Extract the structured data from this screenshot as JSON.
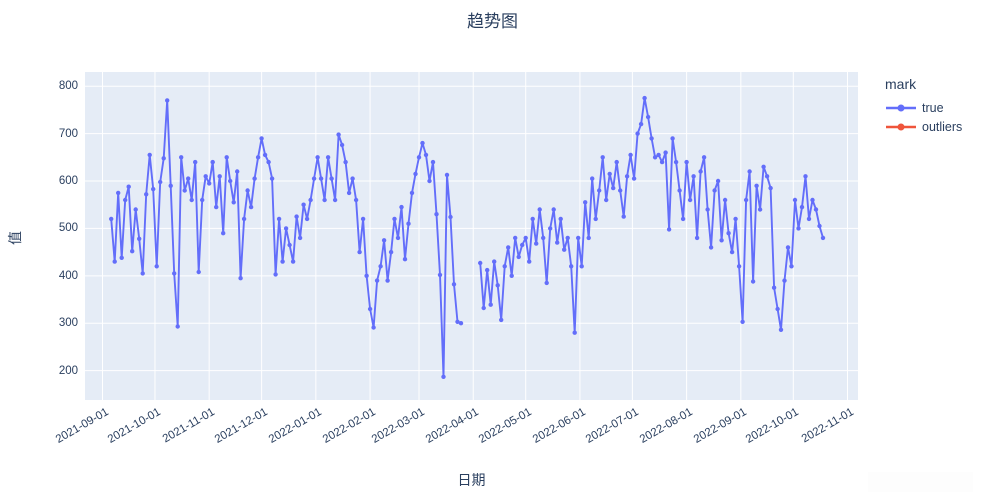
{
  "title": "趋势图",
  "axes": {
    "x_label": "日期",
    "y_label": "值",
    "y_ticks": [
      200,
      300,
      400,
      500,
      600,
      700,
      800
    ],
    "x_ticks": [
      "2021-09-01",
      "2021-10-01",
      "2021-11-01",
      "2021-12-01",
      "2022-01-01",
      "2022-02-01",
      "2022-03-01",
      "2022-04-01",
      "2022-05-01",
      "2022-06-01",
      "2022-07-01",
      "2022-08-01",
      "2022-09-01",
      "2022-10-01",
      "2022-11-01"
    ]
  },
  "legend": {
    "title": "mark",
    "entries": [
      {
        "label": "true",
        "color": "#636EFA"
      },
      {
        "label": "outliers",
        "color": "#EF553B"
      }
    ]
  },
  "colors": {
    "plot_background": "#e5ecf6",
    "grid": "#ffffff",
    "text": "#2a3f5f",
    "series_true": "#636EFA",
    "series_outliers": "#EF553B"
  },
  "chart_data": {
    "type": "line",
    "title": "趋势图",
    "xlabel": "日期",
    "ylabel": "值",
    "grid": true,
    "legend_position": "right",
    "x_domain": [
      "2021-08-22",
      "2022-11-07"
    ],
    "y_domain": [
      138,
      830
    ],
    "series": [
      {
        "name": "true",
        "color": "#636EFA",
        "points": [
          [
            "2021-09-06",
            520
          ],
          [
            "2021-09-08",
            430
          ],
          [
            "2021-09-10",
            575
          ],
          [
            "2021-09-12",
            438
          ],
          [
            "2021-09-14",
            560
          ],
          [
            "2021-09-16",
            588
          ],
          [
            "2021-09-18",
            452
          ],
          [
            "2021-09-20",
            540
          ],
          [
            "2021-09-22",
            478
          ],
          [
            "2021-09-24",
            405
          ],
          [
            "2021-09-26",
            572
          ],
          [
            "2021-09-28",
            655
          ],
          [
            "2021-09-30",
            583
          ],
          [
            "2021-10-02",
            420
          ],
          [
            "2021-10-04",
            598
          ],
          [
            "2021-10-06",
            648
          ],
          [
            "2021-10-08",
            770
          ],
          [
            "2021-10-10",
            590
          ],
          [
            "2021-10-12",
            405
          ],
          [
            "2021-10-14",
            293
          ],
          [
            "2021-10-16",
            650
          ],
          [
            "2021-10-18",
            580
          ],
          [
            "2021-10-20",
            605
          ],
          [
            "2021-10-22",
            560
          ],
          [
            "2021-10-24",
            640
          ],
          [
            "2021-10-26",
            408
          ],
          [
            "2021-10-28",
            560
          ],
          [
            "2021-10-30",
            610
          ],
          [
            "2021-11-01",
            595
          ],
          [
            "2021-11-03",
            640
          ],
          [
            "2021-11-05",
            545
          ],
          [
            "2021-11-07",
            610
          ],
          [
            "2021-11-09",
            490
          ],
          [
            "2021-11-11",
            650
          ],
          [
            "2021-11-13",
            600
          ],
          [
            "2021-11-15",
            555
          ],
          [
            "2021-11-17",
            620
          ],
          [
            "2021-11-19",
            395
          ],
          [
            "2021-11-21",
            520
          ],
          [
            "2021-11-23",
            580
          ],
          [
            "2021-11-25",
            545
          ],
          [
            "2021-11-27",
            605
          ],
          [
            "2021-11-29",
            650
          ],
          [
            "2021-12-01",
            690
          ],
          [
            "2021-12-03",
            655
          ],
          [
            "2021-12-05",
            640
          ],
          [
            "2021-12-07",
            605
          ],
          [
            "2021-12-09",
            403
          ],
          [
            "2021-12-11",
            520
          ],
          [
            "2021-12-13",
            430
          ],
          [
            "2021-12-15",
            500
          ],
          [
            "2021-12-17",
            465
          ],
          [
            "2021-12-19",
            430
          ],
          [
            "2021-12-21",
            525
          ],
          [
            "2021-12-23",
            480
          ],
          [
            "2021-12-25",
            550
          ],
          [
            "2021-12-27",
            520
          ],
          [
            "2021-12-29",
            560
          ],
          [
            "2021-12-31",
            605
          ],
          [
            "2022-01-02",
            650
          ],
          [
            "2022-01-04",
            605
          ],
          [
            "2022-01-06",
            560
          ],
          [
            "2022-01-08",
            650
          ],
          [
            "2022-01-10",
            605
          ],
          [
            "2022-01-12",
            560
          ],
          [
            "2022-01-14",
            698
          ],
          [
            "2022-01-16",
            676
          ],
          [
            "2022-01-18",
            640
          ],
          [
            "2022-01-20",
            575
          ],
          [
            "2022-01-22",
            605
          ],
          [
            "2022-01-24",
            560
          ],
          [
            "2022-01-26",
            450
          ],
          [
            "2022-01-28",
            520
          ],
          [
            "2022-01-30",
            400
          ],
          [
            "2022-02-01",
            330
          ],
          [
            "2022-02-03",
            291
          ],
          [
            "2022-02-05",
            390
          ],
          [
            "2022-02-07",
            420
          ],
          [
            "2022-02-09",
            475
          ],
          [
            "2022-02-11",
            390
          ],
          [
            "2022-02-13",
            450
          ],
          [
            "2022-02-15",
            520
          ],
          [
            "2022-02-17",
            480
          ],
          [
            "2022-02-19",
            545
          ],
          [
            "2022-02-21",
            435
          ],
          [
            "2022-02-23",
            510
          ],
          [
            "2022-02-25",
            575
          ],
          [
            "2022-02-27",
            615
          ],
          [
            "2022-03-01",
            650
          ],
          [
            "2022-03-03",
            680
          ],
          [
            "2022-03-05",
            655
          ],
          [
            "2022-03-07",
            600
          ],
          [
            "2022-03-09",
            640
          ],
          [
            "2022-03-11",
            530
          ],
          [
            "2022-03-13",
            402
          ],
          [
            "2022-03-15",
            187
          ],
          [
            "2022-03-17",
            613
          ],
          [
            "2022-03-19",
            524
          ],
          [
            "2022-03-21",
            382
          ],
          [
            "2022-03-23",
            303
          ],
          [
            "2022-03-25",
            300
          ],
          [
            "2022-04-05",
            427
          ],
          [
            "2022-04-07",
            332
          ],
          [
            "2022-04-09",
            412
          ],
          [
            "2022-04-11",
            339
          ],
          [
            "2022-04-13",
            430
          ],
          [
            "2022-04-15",
            380
          ],
          [
            "2022-04-17",
            307
          ],
          [
            "2022-04-19",
            420
          ],
          [
            "2022-04-21",
            460
          ],
          [
            "2022-04-23",
            400
          ],
          [
            "2022-04-25",
            480
          ],
          [
            "2022-04-27",
            440
          ],
          [
            "2022-04-29",
            465
          ],
          [
            "2022-05-01",
            480
          ],
          [
            "2022-05-03",
            430
          ],
          [
            "2022-05-05",
            520
          ],
          [
            "2022-05-07",
            468
          ],
          [
            "2022-05-09",
            540
          ],
          [
            "2022-05-11",
            480
          ],
          [
            "2022-05-13",
            385
          ],
          [
            "2022-05-15",
            500
          ],
          [
            "2022-05-17",
            540
          ],
          [
            "2022-05-19",
            470
          ],
          [
            "2022-05-21",
            520
          ],
          [
            "2022-05-23",
            455
          ],
          [
            "2022-05-25",
            480
          ],
          [
            "2022-05-27",
            420
          ],
          [
            "2022-05-29",
            280
          ],
          [
            "2022-05-31",
            480
          ],
          [
            "2022-06-02",
            420
          ],
          [
            "2022-06-04",
            555
          ],
          [
            "2022-06-06",
            480
          ],
          [
            "2022-06-08",
            605
          ],
          [
            "2022-06-10",
            520
          ],
          [
            "2022-06-12",
            580
          ],
          [
            "2022-06-14",
            650
          ],
          [
            "2022-06-16",
            560
          ],
          [
            "2022-06-18",
            615
          ],
          [
            "2022-06-20",
            585
          ],
          [
            "2022-06-22",
            640
          ],
          [
            "2022-06-24",
            580
          ],
          [
            "2022-06-26",
            525
          ],
          [
            "2022-06-28",
            610
          ],
          [
            "2022-06-30",
            655
          ],
          [
            "2022-07-02",
            605
          ],
          [
            "2022-07-04",
            700
          ],
          [
            "2022-07-06",
            720
          ],
          [
            "2022-07-08",
            775
          ],
          [
            "2022-07-10",
            735
          ],
          [
            "2022-07-12",
            690
          ],
          [
            "2022-07-14",
            650
          ],
          [
            "2022-07-16",
            655
          ],
          [
            "2022-07-18",
            640
          ],
          [
            "2022-07-20",
            660
          ],
          [
            "2022-07-22",
            498
          ],
          [
            "2022-07-24",
            690
          ],
          [
            "2022-07-26",
            640
          ],
          [
            "2022-07-28",
            580
          ],
          [
            "2022-07-30",
            520
          ],
          [
            "2022-08-01",
            640
          ],
          [
            "2022-08-03",
            560
          ],
          [
            "2022-08-05",
            610
          ],
          [
            "2022-08-07",
            480
          ],
          [
            "2022-08-09",
            620
          ],
          [
            "2022-08-11",
            650
          ],
          [
            "2022-08-13",
            540
          ],
          [
            "2022-08-15",
            460
          ],
          [
            "2022-08-17",
            580
          ],
          [
            "2022-08-19",
            600
          ],
          [
            "2022-08-21",
            475
          ],
          [
            "2022-08-23",
            560
          ],
          [
            "2022-08-25",
            490
          ],
          [
            "2022-08-27",
            450
          ],
          [
            "2022-08-29",
            520
          ],
          [
            "2022-08-31",
            420
          ],
          [
            "2022-09-02",
            303
          ],
          [
            "2022-09-04",
            560
          ],
          [
            "2022-09-06",
            620
          ],
          [
            "2022-09-08",
            388
          ],
          [
            "2022-09-10",
            590
          ],
          [
            "2022-09-12",
            540
          ],
          [
            "2022-09-14",
            630
          ],
          [
            "2022-09-16",
            610
          ],
          [
            "2022-09-18",
            585
          ],
          [
            "2022-09-20",
            375
          ],
          [
            "2022-09-22",
            330
          ],
          [
            "2022-09-24",
            286
          ],
          [
            "2022-09-26",
            390
          ],
          [
            "2022-09-28",
            460
          ],
          [
            "2022-09-30",
            420
          ],
          [
            "2022-10-02",
            560
          ],
          [
            "2022-10-04",
            500
          ],
          [
            "2022-10-06",
            545
          ],
          [
            "2022-10-08",
            610
          ],
          [
            "2022-10-10",
            520
          ],
          [
            "2022-10-12",
            560
          ],
          [
            "2022-10-14",
            540
          ],
          [
            "2022-10-16",
            505
          ],
          [
            "2022-10-18",
            480
          ]
        ]
      },
      {
        "name": "outliers",
        "color": "#EF553B",
        "points": []
      }
    ]
  }
}
